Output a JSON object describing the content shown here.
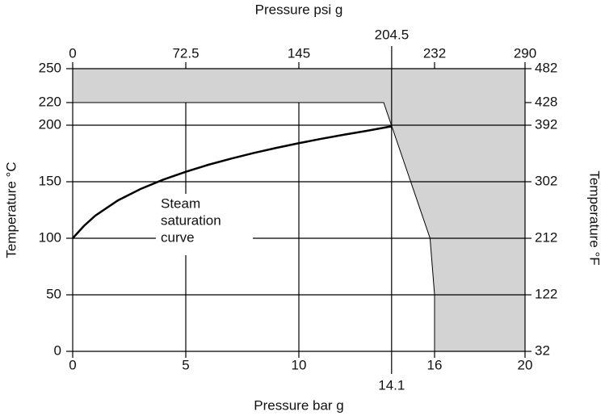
{
  "chart_data": {
    "type": "line",
    "xlabel": "Pressure bar g",
    "x2label": "Pressure psi g",
    "ylabel": "Temperature °C",
    "y2label": "Temperature °F",
    "annotation": [
      "Steam",
      "saturation",
      "curve"
    ],
    "xlim": [
      0,
      20
    ],
    "xticks": [
      0,
      5,
      10,
      14.1,
      16,
      20
    ],
    "x2lim": [
      0,
      290
    ],
    "x2ticks": [
      0,
      72.5,
      145,
      204.5,
      232,
      290
    ],
    "ylim": [
      0,
      250
    ],
    "yticks": [
      0,
      50,
      100,
      150,
      200,
      220,
      250
    ],
    "y2lim": [
      32,
      482
    ],
    "y2ticks": [
      32,
      122,
      212,
      302,
      392,
      428,
      482
    ],
    "grid": true,
    "series": [
      {
        "kind": "area",
        "color": "#d3d3d3",
        "x": [
          0,
          20,
          20,
          16,
          16,
          15.8,
          13.75,
          0
        ],
        "values": [
          250,
          250,
          0,
          0,
          50,
          100,
          220,
          220
        ]
      },
      {
        "kind": "line",
        "color": "#000000",
        "x": [
          0,
          0.5,
          1,
          2,
          3,
          4,
          5,
          6,
          7,
          8,
          9,
          10,
          11,
          12,
          13,
          14.1
        ],
        "values": [
          100,
          111,
          120,
          133.5,
          143.6,
          151.8,
          158.8,
          165,
          170.4,
          175.4,
          179.9,
          184.1,
          188,
          191.6,
          195,
          199
        ]
      }
    ]
  }
}
